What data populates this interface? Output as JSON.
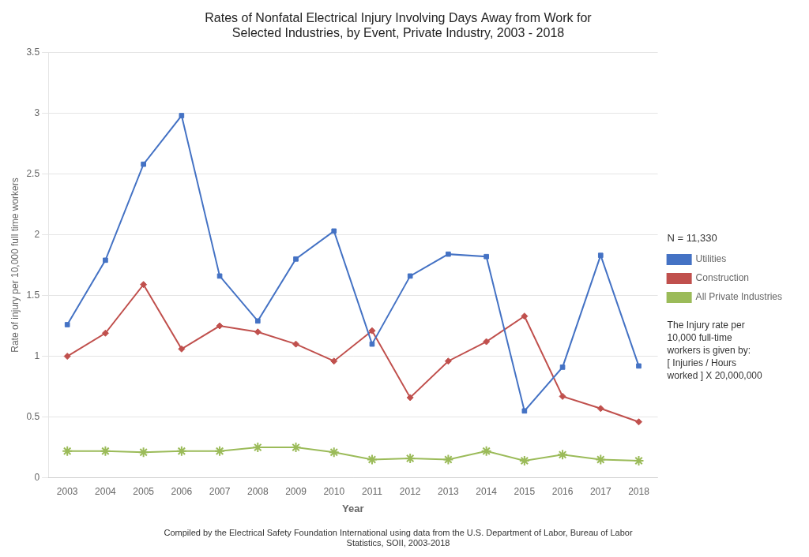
{
  "chart_data": {
    "type": "line",
    "title": "Rates of Nonfatal Electrical Injury Involving Days Away from Work for\nSelected Industries, by Event, Private Industry, 2003 - 2018",
    "subtitle": "Compiled by the Electrical Safety Foundation International using data from the U.S. Department of Labor, Bureau of Labor\nStatistics, SOII, 2003-2018",
    "xlabel": "Year",
    "ylabel": "Rate of injury per 10,000 full time workers",
    "annotations": [
      "N = 11,330",
      "The Injury rate per\n10,000 full-time\nworkers is given by:\n[ Injuries / Hours\nworked ] X 20,000,000"
    ],
    "x": [
      2003,
      2004,
      2005,
      2006,
      2007,
      2008,
      2009,
      2010,
      2011,
      2012,
      2013,
      2014,
      2015,
      2016,
      2017,
      2018
    ],
    "series": [
      {
        "name": "Utilities",
        "color": "#4472C4",
        "marker": "square",
        "values": [
          1.26,
          1.79,
          2.58,
          2.98,
          1.66,
          1.29,
          1.8,
          2.03,
          1.1,
          1.66,
          1.84,
          1.82,
          0.55,
          0.91,
          1.83,
          0.92
        ]
      },
      {
        "name": "Construction",
        "color": "#C0504D",
        "marker": "diamond",
        "values": [
          1.0,
          1.19,
          1.59,
          1.06,
          1.25,
          1.2,
          1.1,
          0.96,
          1.21,
          0.66,
          0.96,
          1.12,
          1.33,
          0.67,
          0.57,
          0.46
        ]
      },
      {
        "name": "All Private Industries",
        "color": "#9BBB59",
        "marker": "star",
        "values": [
          0.22,
          0.22,
          0.21,
          0.22,
          0.22,
          0.25,
          0.25,
          0.21,
          0.15,
          0.16,
          0.15,
          0.22,
          0.14,
          0.19,
          0.15,
          0.14
        ]
      }
    ],
    "xlim": [
      2002.5,
      2018.5
    ],
    "xticks": [
      2003,
      2004,
      2005,
      2006,
      2007,
      2008,
      2009,
      2010,
      2011,
      2012,
      2013,
      2014,
      2015,
      2016,
      2017,
      2018
    ],
    "ylim": [
      0,
      3.5
    ],
    "yticks": [
      0,
      0.5,
      1,
      1.5,
      2,
      2.5,
      3,
      3.5
    ],
    "grid": "y",
    "legend": "right"
  }
}
